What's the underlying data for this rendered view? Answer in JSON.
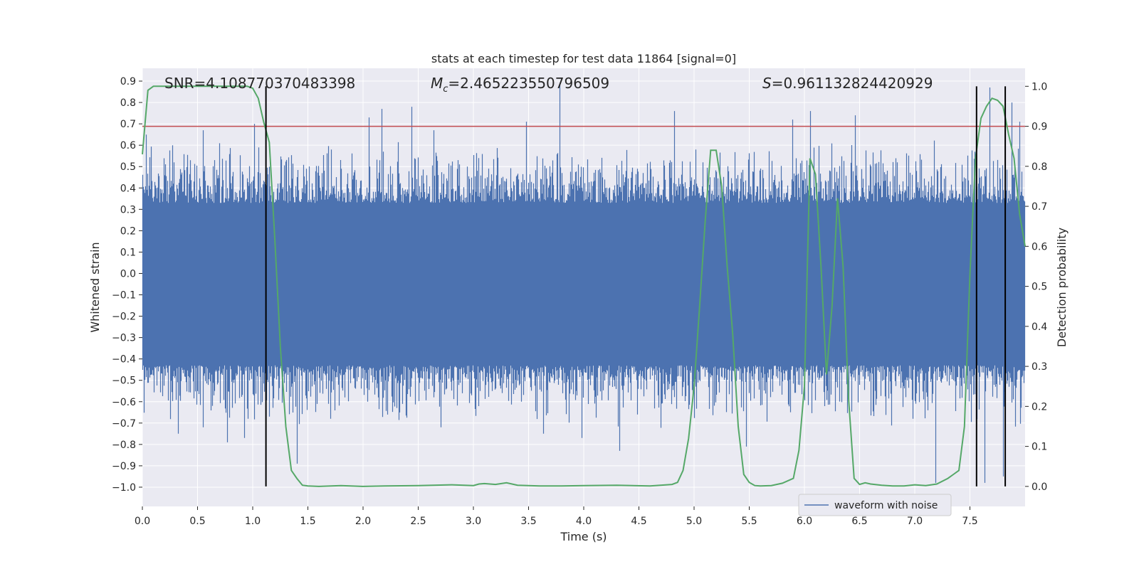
{
  "chart_data": {
    "type": "line",
    "title": "stats at each timestep for test data 11864 [signal=0]",
    "xlabel": "Time (s)",
    "ylabel": "Whitened strain",
    "y2label": "Detection probability",
    "xlim": [
      0.0,
      8.0
    ],
    "ylim": [
      -1.09,
      0.96
    ],
    "y2lim": [
      -0.05,
      1.045
    ],
    "x_ticks": [
      0.0,
      0.5,
      1.0,
      1.5,
      2.0,
      2.5,
      3.0,
      3.5,
      4.0,
      4.5,
      5.0,
      5.5,
      6.0,
      6.5,
      7.0,
      7.5
    ],
    "x_tick_labels": [
      "0.0",
      "0.5",
      "1.0",
      "1.5",
      "2.0",
      "2.5",
      "3.0",
      "3.5",
      "4.0",
      "4.5",
      "5.0",
      "5.5",
      "6.0",
      "6.5",
      "7.0",
      "7.5"
    ],
    "y_ticks": [
      -1.0,
      -0.9,
      -0.8,
      -0.7,
      -0.6,
      -0.5,
      -0.4,
      -0.3,
      -0.2,
      -0.1,
      0.0,
      0.1,
      0.2,
      0.3,
      0.4,
      0.5,
      0.6,
      0.7,
      0.8,
      0.9
    ],
    "y_tick_labels": [
      "−1.0",
      "−0.9",
      "−0.8",
      "−0.7",
      "−0.6",
      "−0.5",
      "−0.4",
      "−0.3",
      "−0.2",
      "−0.1",
      "0.0",
      "0.1",
      "0.2",
      "0.3",
      "0.4",
      "0.5",
      "0.6",
      "0.7",
      "0.8",
      "0.9"
    ],
    "y2_ticks": [
      0.0,
      0.1,
      0.2,
      0.3,
      0.4,
      0.5,
      0.6,
      0.7,
      0.8,
      0.9,
      1.0
    ],
    "y2_tick_labels": [
      "0.0",
      "0.1",
      "0.2",
      "0.3",
      "0.4",
      "0.5",
      "0.6",
      "0.7",
      "0.8",
      "0.9",
      "1.0"
    ],
    "threshold": 0.9,
    "threshold_color": "#c44e52",
    "detection_markers_x": [
      1.12,
      7.56,
      7.82
    ],
    "annotations": {
      "snr": "SNR=4.108770370483398",
      "mc_symbol": "M",
      "mc_sub": "c",
      "mc_value": "=2.465223550796509",
      "s_symbol": "S",
      "s_value": "=0.961132824420929"
    },
    "legend": {
      "label": "waveform with noise",
      "location": "lower right"
    },
    "series": [
      {
        "name": "waveform with noise",
        "axis": "left",
        "color": "#4c72b0",
        "description": "dense whitened strain noise, 8 s",
        "core_low": -0.43,
        "core_high": 0.33,
        "peaks": [
          {
            "t": 0.03,
            "v": 0.65
          },
          {
            "t": 0.27,
            "v": 0.6
          },
          {
            "t": 0.32,
            "v": -0.75
          },
          {
            "t": 0.55,
            "v": 0.67
          },
          {
            "t": 0.55,
            "v": -0.72
          },
          {
            "t": 0.77,
            "v": -0.79
          },
          {
            "t": 0.92,
            "v": -0.77
          },
          {
            "t": 1.01,
            "v": 0.7
          },
          {
            "t": 1.05,
            "v": 0.59
          },
          {
            "t": 1.4,
            "v": -0.89
          },
          {
            "t": 1.71,
            "v": 0.58
          },
          {
            "t": 2.05,
            "v": 0.73
          },
          {
            "t": 2.17,
            "v": 0.77
          },
          {
            "t": 2.44,
            "v": 0.78
          },
          {
            "t": 2.64,
            "v": 0.67
          },
          {
            "t": 2.7,
            "v": -0.72
          },
          {
            "t": 3.48,
            "v": 0.71
          },
          {
            "t": 3.63,
            "v": -0.75
          },
          {
            "t": 3.78,
            "v": 0.89
          },
          {
            "t": 3.98,
            "v": -0.77
          },
          {
            "t": 4.32,
            "v": -0.83
          },
          {
            "t": 4.82,
            "v": 0.76
          },
          {
            "t": 5.47,
            "v": -0.81
          },
          {
            "t": 5.89,
            "v": 0.72
          },
          {
            "t": 6.05,
            "v": 0.76
          },
          {
            "t": 6.46,
            "v": 0.74
          },
          {
            "t": 7.19,
            "v": -0.98
          },
          {
            "t": 7.63,
            "v": -0.98
          },
          {
            "t": 7.68,
            "v": 0.87
          },
          {
            "t": 7.8,
            "v": -0.95
          },
          {
            "t": 7.88,
            "v": 0.8
          },
          {
            "t": 7.95,
            "v": 0.71
          }
        ]
      },
      {
        "name": "detection probability",
        "axis": "right",
        "color": "#55a868",
        "x": [
          0.0,
          0.05,
          0.1,
          0.2,
          0.3,
          0.4,
          0.5,
          0.6,
          0.7,
          0.8,
          0.9,
          0.95,
          1.0,
          1.05,
          1.1,
          1.15,
          1.2,
          1.25,
          1.3,
          1.35,
          1.4,
          1.45,
          1.5,
          1.6,
          1.8,
          2.0,
          2.2,
          2.5,
          2.8,
          3.0,
          3.05,
          3.1,
          3.2,
          3.3,
          3.4,
          3.6,
          3.8,
          4.0,
          4.3,
          4.6,
          4.8,
          4.85,
          4.9,
          4.95,
          5.0,
          5.05,
          5.1,
          5.15,
          5.2,
          5.25,
          5.3,
          5.35,
          5.4,
          5.45,
          5.5,
          5.55,
          5.6,
          5.7,
          5.8,
          5.9,
          5.95,
          6.0,
          6.05,
          6.1,
          6.15,
          6.2,
          6.25,
          6.3,
          6.35,
          6.4,
          6.45,
          6.5,
          6.55,
          6.6,
          6.7,
          6.8,
          6.9,
          7.0,
          7.1,
          7.2,
          7.3,
          7.35,
          7.4,
          7.45,
          7.5,
          7.55,
          7.6,
          7.65,
          7.7,
          7.75,
          7.8,
          7.85,
          7.9,
          7.95,
          8.0
        ],
        "values": [
          0.83,
          0.99,
          1.0,
          1.0,
          1.0,
          1.0,
          1.0,
          1.0,
          1.0,
          1.0,
          1.0,
          1.0,
          0.995,
          0.97,
          0.91,
          0.86,
          0.62,
          0.35,
          0.15,
          0.04,
          0.02,
          0.003,
          0.001,
          0.0,
          0.002,
          0.0,
          0.001,
          0.002,
          0.004,
          0.002,
          0.006,
          0.007,
          0.005,
          0.009,
          0.003,
          0.001,
          0.001,
          0.002,
          0.003,
          0.001,
          0.005,
          0.01,
          0.04,
          0.12,
          0.25,
          0.45,
          0.66,
          0.84,
          0.84,
          0.75,
          0.55,
          0.38,
          0.15,
          0.03,
          0.01,
          0.002,
          0.001,
          0.002,
          0.008,
          0.02,
          0.09,
          0.25,
          0.82,
          0.78,
          0.55,
          0.28,
          0.45,
          0.72,
          0.55,
          0.22,
          0.02,
          0.005,
          0.009,
          0.006,
          0.003,
          0.001,
          0.001,
          0.004,
          0.002,
          0.006,
          0.02,
          0.03,
          0.04,
          0.15,
          0.53,
          0.82,
          0.92,
          0.95,
          0.97,
          0.965,
          0.95,
          0.88,
          0.82,
          0.68,
          0.6
        ]
      }
    ]
  }
}
